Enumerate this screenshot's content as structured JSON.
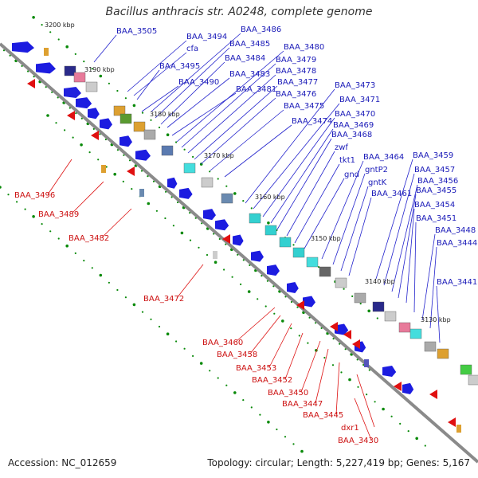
{
  "title": "Bacillus anthracis str. A0248, complete genome",
  "accession": "Accession: NC_012659",
  "summary": "Topology: circular; Length: 5,227,419 bp; Genes: 5,167",
  "colors": {
    "forward": "#1c1ce0",
    "reverse": "#e01010",
    "backbone": "#8a8a8a",
    "tick": "#0a8a0a"
  },
  "scale_ticks": [
    "3200 kbp",
    "3190 kbp",
    "3180 kbp",
    "3170 kbp",
    "3160 kbp",
    "3150 kbp",
    "3140 kbp",
    "3130 kbp"
  ],
  "forward_labels": [
    "BAA_3505",
    "BAA_3494",
    "cfa",
    "BAA_3495",
    "BAA_3490",
    "BAA_3486",
    "BAA_3485",
    "BAA_3484",
    "BAA_3483",
    "BAA_3481",
    "BAA_3480",
    "BAA_3479",
    "BAA_3478",
    "BAA_3477",
    "BAA_3476",
    "BAA_3475",
    "BAA_3474",
    "BAA_3473",
    "BAA_3471",
    "BAA_3470",
    "BAA_3469",
    "BAA_3468",
    "zwf",
    "tkt1",
    "gnd",
    "BAA_3464",
    "gntP2",
    "gntK",
    "BAA_3461",
    "BAA_3459",
    "BAA_3457",
    "BAA_3456",
    "BAA_3455",
    "BAA_3454",
    "BAA_3451",
    "BAA_3448",
    "BAA_3444",
    "BAA_3441"
  ],
  "reverse_labels": [
    "BAA_3496",
    "BAA_3489",
    "BAA_3482",
    "BAA_3472",
    "BAA_3460",
    "BAA_3458",
    "BAA_3453",
    "BAA_3452",
    "BAA_3450",
    "BAA_3447",
    "BAA_3445",
    "dxr1",
    "BAA_3430"
  ]
}
